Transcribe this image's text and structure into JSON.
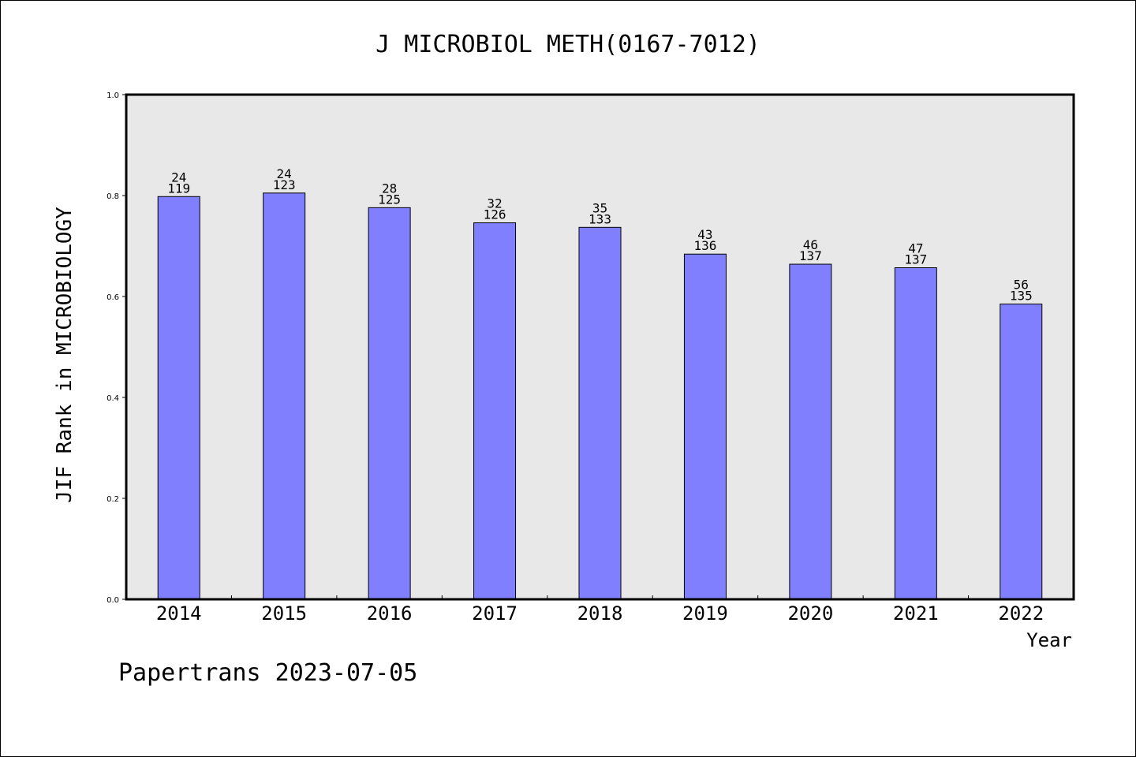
{
  "chart_data": {
    "type": "bar",
    "title": "J MICROBIOL METH(0167-7012)",
    "xlabel": "Year",
    "ylabel": "JIF Rank in MICROBIOLOGY",
    "ylim": [
      0,
      1.0
    ],
    "yticks": [
      "0.0",
      "0.2",
      "0.4",
      "0.6",
      "0.8",
      "1.0"
    ],
    "categories": [
      "2014",
      "2015",
      "2016",
      "2017",
      "2018",
      "2019",
      "2020",
      "2021",
      "2022"
    ],
    "values": [
      0.798,
      0.805,
      0.776,
      0.746,
      0.737,
      0.684,
      0.664,
      0.657,
      0.585
    ],
    "rank": [
      "24",
      "24",
      "28",
      "32",
      "35",
      "43",
      "46",
      "47",
      "56"
    ],
    "total": [
      "119",
      "123",
      "125",
      "126",
      "133",
      "136",
      "137",
      "137",
      "135"
    ],
    "grid": false,
    "plot_background": "#e8e8e8",
    "bar_color": "#8080ff"
  },
  "footer": "Papertrans 2023-07-05"
}
